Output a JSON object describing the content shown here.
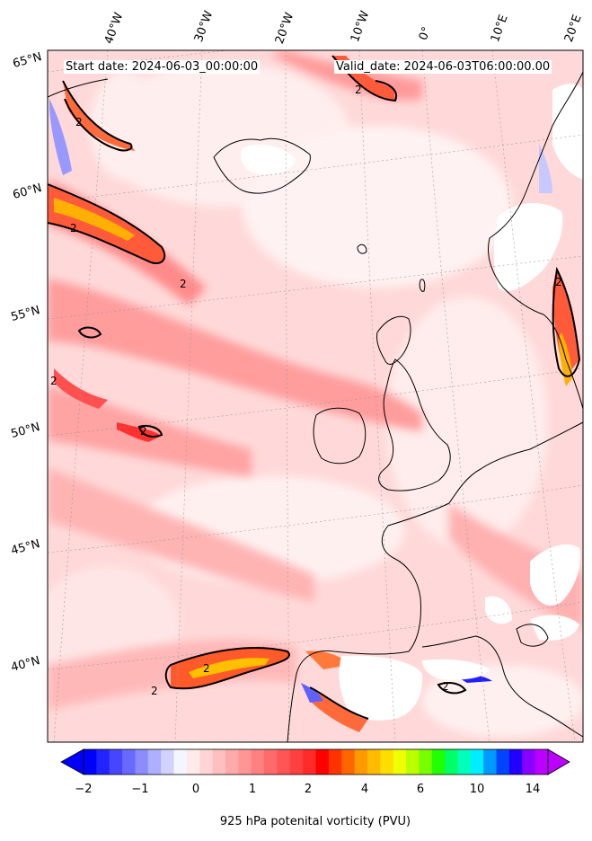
{
  "header": {
    "start_date": "Start date: 2024-06-03_00:00:00",
    "valid_date": "Valid_date: 2024-06-03T06:00:00.00"
  },
  "lon_labels": [
    "40°W",
    "30°W",
    "20°W",
    "10°W",
    "0°",
    "10°E",
    "20°E"
  ],
  "lat_labels": [
    "65°N",
    "60°N",
    "55°N",
    "50°N",
    "45°N",
    "40°N"
  ],
  "contour_label": "2",
  "colorbar": {
    "ticks": [
      "−2",
      "−1",
      "0",
      "1",
      "2",
      "4",
      "6",
      "10",
      "14"
    ],
    "label": "925 hPa potenital vorticity (PVU)",
    "colors": [
      "#0000ff",
      "#2323ff",
      "#4646ff",
      "#6969ff",
      "#8c8cff",
      "#afafff",
      "#d2d2ff",
      "#f5f5ff",
      "#ffeaea",
      "#ffd5d5",
      "#ffbfbf",
      "#ffaaaa",
      "#ff9595",
      "#ff8080",
      "#ff6a6a",
      "#ff5555",
      "#ff4040",
      "#ff2b2b",
      "#ff0000",
      "#ff3300",
      "#ff6600",
      "#ff9900",
      "#ffbb00",
      "#ffdd00",
      "#eeff00",
      "#bbff00",
      "#77ff00",
      "#22ff00",
      "#00ff66",
      "#00ffbb",
      "#00eeff",
      "#0099ff",
      "#0044ff",
      "#2200ff",
      "#8800ff",
      "#bb00ff"
    ]
  }
}
